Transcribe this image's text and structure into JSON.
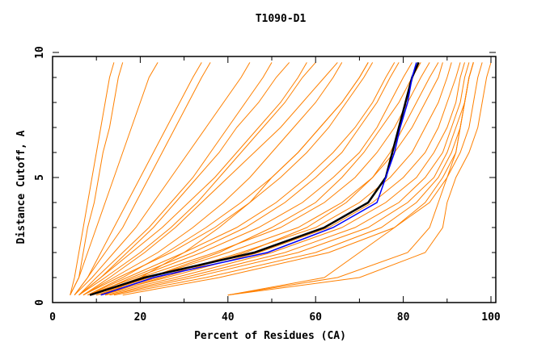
{
  "chart_data": {
    "type": "line",
    "title": "T1090-D1",
    "xlabel": "Percent of Residues (CA)",
    "ylabel": "Distance Cutoff, A",
    "xlim": [
      0,
      100
    ],
    "ylim": [
      0,
      10
    ],
    "x_ticks": [
      "0",
      "20",
      "40",
      "60",
      "80",
      "100"
    ],
    "y_ticks": [
      "0",
      "5",
      "10"
    ],
    "grid": false,
    "legend": "none",
    "colors": {
      "models": "#ff8000",
      "highlight_black": "#000000",
      "highlight_blue": "#0000ff"
    },
    "y_levels": [
      0.3,
      1,
      2,
      3,
      4,
      5,
      6,
      7,
      8,
      9,
      9.6
    ],
    "model_curves_x": [
      [
        4,
        5,
        6,
        7,
        8,
        9,
        10,
        11,
        12,
        13,
        14
      ],
      [
        4,
        6,
        7,
        8,
        9.5,
        10.5,
        11.5,
        13,
        14,
        15,
        16
      ],
      [
        4,
        6,
        8,
        10,
        12,
        14,
        16,
        18,
        20,
        22,
        24
      ],
      [
        5,
        8,
        12,
        16,
        19,
        22,
        25,
        28,
        31,
        34,
        36
      ],
      [
        5,
        9,
        14,
        19,
        23,
        27,
        31,
        35,
        39,
        43,
        45
      ],
      [
        6,
        11,
        17,
        23,
        28,
        33,
        38,
        42,
        47,
        51,
        54
      ],
      [
        6,
        12,
        20,
        27,
        33,
        38,
        43,
        48,
        53,
        57,
        60
      ],
      [
        7,
        14,
        24,
        32,
        39,
        45,
        50,
        55,
        60,
        64,
        66
      ],
      [
        7,
        15,
        27,
        37,
        45,
        52,
        58,
        63,
        67,
        71,
        73
      ],
      [
        8,
        17,
        30,
        42,
        51,
        58,
        64,
        69,
        73,
        76,
        78
      ],
      [
        8,
        19,
        34,
        47,
        57,
        64,
        70,
        74,
        77,
        80,
        82
      ],
      [
        9,
        20,
        37,
        52,
        62,
        69,
        74,
        78,
        81,
        84,
        86
      ],
      [
        9,
        22,
        40,
        56,
        66,
        73,
        78,
        82,
        85,
        88,
        89
      ],
      [
        10,
        24,
        43,
        60,
        70,
        77,
        82,
        85,
        88,
        90,
        91
      ],
      [
        10,
        26,
        47,
        63,
        73,
        80,
        85,
        88,
        90,
        92,
        93
      ],
      [
        11,
        28,
        50,
        66,
        76,
        83,
        87,
        90,
        92,
        93,
        94
      ],
      [
        12,
        30,
        53,
        69,
        79,
        85,
        89,
        91,
        93,
        94,
        95
      ],
      [
        13,
        32,
        56,
        72,
        81,
        87,
        90,
        92,
        94,
        95,
        96
      ],
      [
        14,
        35,
        60,
        75,
        83,
        88,
        91,
        93,
        94,
        95,
        96
      ],
      [
        16,
        38,
        63,
        78,
        85,
        89,
        92,
        93,
        94,
        95,
        96
      ],
      [
        40,
        62,
        70,
        78,
        86,
        90,
        92,
        93,
        94,
        95,
        96
      ],
      [
        40,
        70,
        85,
        89,
        90,
        92,
        95,
        97,
        98,
        99,
        100
      ],
      [
        40,
        65,
        81,
        86,
        88,
        90,
        93,
        95,
        96,
        97,
        98
      ],
      [
        12,
        20,
        30,
        38,
        45,
        50,
        56,
        61,
        66,
        70,
        72
      ],
      [
        6,
        10,
        16,
        22,
        27,
        32,
        36,
        40,
        44,
        48,
        50
      ],
      [
        5,
        8,
        11,
        14,
        17,
        20,
        23,
        26,
        29,
        32,
        34
      ],
      [
        9,
        18,
        32,
        44,
        53,
        60,
        66,
        70,
        74,
        77,
        79
      ],
      [
        11,
        25,
        44,
        58,
        67,
        73,
        77,
        80,
        83,
        86,
        88
      ],
      [
        8,
        16,
        26,
        35,
        43,
        50,
        56,
        61,
        66,
        70,
        72
      ],
      [
        7,
        13,
        21,
        28,
        34,
        40,
        46,
        52,
        57,
        62,
        65
      ],
      [
        10,
        22,
        38,
        50,
        60,
        66,
        71,
        75,
        79,
        82,
        84
      ],
      [
        6,
        11,
        18,
        25,
        31,
        37,
        42,
        47,
        52,
        56,
        58
      ]
    ],
    "highlight_black_x": [
      8.5,
      21,
      46,
      62,
      72,
      76,
      77.5,
      79,
      80.5,
      82,
      83.5
    ],
    "highlight_blue_x": [
      11,
      23,
      49,
      64,
      74,
      76,
      78,
      79.3,
      81,
      82,
      83
    ]
  }
}
